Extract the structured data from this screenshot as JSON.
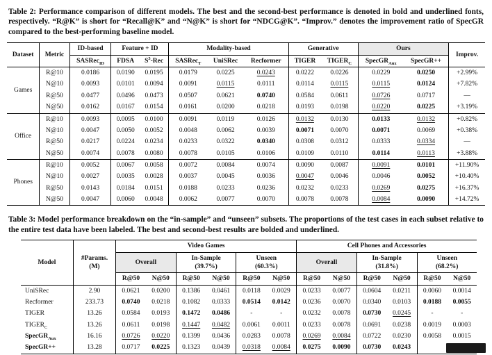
{
  "colors": {
    "highlight": "#e9e9e9",
    "artifact": "#1a1a1a",
    "ink": "#111111",
    "paper_bg": "#ffffff"
  },
  "table2": {
    "caption": "Table 2: Performance comparison of different models. The best and the second-best performance is denoted in bold and underlined fonts, respectively. “R@K” is short for “Recall@K” and “N@K” is short for “NDCG@K”. “Improv.” denotes the improvement ratio of SpecGR compared to the best-performing baseline model.",
    "header": {
      "dataset": "Dataset",
      "metric": "Metric",
      "improv": "Improv.",
      "groups": [
        {
          "label": "ID-based",
          "span": 1,
          "highlight": false
        },
        {
          "label": "Feature + ID",
          "span": 2,
          "highlight": false
        },
        {
          "label": "Modality-based",
          "span": 3,
          "highlight": false
        },
        {
          "label": "Generative",
          "span": 2,
          "highlight": false
        },
        {
          "label": "Ours",
          "span": 2,
          "highlight": true
        }
      ],
      "models": [
        {
          "pre": "SASRec",
          "sub": "ID"
        },
        {
          "pre": "FDSA"
        },
        {
          "pre": "S",
          "sup": "3",
          "mid": "-Rec"
        },
        {
          "pre": "SASRec",
          "sub": "T"
        },
        {
          "pre": "UniSRec"
        },
        {
          "pre": "Recformer"
        },
        {
          "pre": "TIGER"
        },
        {
          "pre": "TIGER",
          "sub": "C"
        },
        {
          "pre": "SpecGR",
          "sub": "Aux"
        },
        {
          "pre": "SpecGR++"
        }
      ]
    },
    "blocks": [
      {
        "dataset": "Games",
        "rows": [
          {
            "metric": "R@10",
            "values": [
              "0.0186",
              "0.0190",
              "0.0195",
              "0.0179",
              "0.0225",
              "u:0.0243",
              "0.0222",
              "0.0226",
              "0.0229",
              "b:0.0250"
            ],
            "improv": "+2.99%"
          },
          {
            "metric": "N@10",
            "values": [
              "0.0093",
              "0.0101",
              "0.0094",
              "0.0091",
              "u:0.0115",
              "0.0111",
              "0.0114",
              "u:0.0115",
              "u:0.0115",
              "b:0.0124"
            ],
            "improv": "+7.82%"
          },
          {
            "metric": "R@50",
            "values": [
              "0.0477",
              "0.0496",
              "0.0473",
              "0.0507",
              "0.0621",
              "b:0.0740",
              "0.0584",
              "0.0611",
              "u:0.0726",
              "0.0717"
            ],
            "improv": "––"
          },
          {
            "metric": "N@50",
            "values": [
              "0.0162",
              "0.0167",
              "0.0154",
              "0.0161",
              "0.0200",
              "0.0218",
              "0.0193",
              "0.0198",
              "u:0.0220",
              "b:0.0225"
            ],
            "improv": "+3.19%"
          }
        ]
      },
      {
        "dataset": "Office",
        "rows": [
          {
            "metric": "R@10",
            "values": [
              "0.0093",
              "0.0095",
              "0.0100",
              "0.0091",
              "0.0119",
              "0.0126",
              "u:0.0132",
              "0.0130",
              "b:0.0133",
              "u:0.0132"
            ],
            "improv": "+0.82%"
          },
          {
            "metric": "N@10",
            "values": [
              "0.0047",
              "0.0050",
              "0.0052",
              "0.0048",
              "0.0062",
              "0.0039",
              "b:0.0071",
              "0.0070",
              "b:0.0071",
              "0.0069"
            ],
            "improv": "+0.38%"
          },
          {
            "metric": "R@50",
            "values": [
              "0.0217",
              "0.0224",
              "0.0234",
              "0.0233",
              "0.0322",
              "b:0.0340",
              "0.0308",
              "0.0312",
              "0.0333",
              "u:0.0334"
            ],
            "improv": "––"
          },
          {
            "metric": "N@50",
            "values": [
              "0.0074",
              "0.0078",
              "0.0080",
              "0.0078",
              "0.0105",
              "0.0106",
              "0.0109",
              "0.0110",
              "b:0.0114",
              "u:0.0113"
            ],
            "improv": "+3.88%"
          }
        ]
      },
      {
        "dataset": "Phones",
        "rows": [
          {
            "metric": "R@10",
            "values": [
              "0.0052",
              "0.0067",
              "0.0058",
              "0.0072",
              "0.0084",
              "0.0074",
              "0.0090",
              "0.0087",
              "u:0.0091",
              "b:0.0101"
            ],
            "improv": "+11.90%"
          },
          {
            "metric": "N@10",
            "values": [
              "0.0027",
              "0.0035",
              "0.0028",
              "0.0037",
              "0.0045",
              "0.0036",
              "u:0.0047",
              "0.0046",
              "0.0046",
              "b:0.0052"
            ],
            "improv": "+10.40%"
          },
          {
            "metric": "R@50",
            "values": [
              "0.0143",
              "0.0184",
              "0.0151",
              "0.0188",
              "0.0233",
              "0.0236",
              "0.0232",
              "0.0233",
              "u:0.0269",
              "b:0.0275"
            ],
            "improv": "+16.37%"
          },
          {
            "metric": "N@50",
            "values": [
              "0.0047",
              "0.0060",
              "0.0048",
              "0.0062",
              "0.0077",
              "0.0070",
              "0.0078",
              "0.0078",
              "u:0.0084",
              "b:0.0090"
            ],
            "improv": "+14.72%"
          }
        ]
      }
    ]
  },
  "table3": {
    "caption": "Table 3: Model performance breakdown on the “in-sample” and “unseen” subsets. The proportions of the test cases in each subset relative to the entire test data have been labeled. The best and second-best results are bolded and underlined.",
    "header": {
      "model": "Model",
      "params_line1": "#Params.",
      "params_line2": "(M)",
      "datasets": [
        {
          "label": "Video Games"
        },
        {
          "label": "Cell Phones and Accessories"
        }
      ],
      "subsets": [
        {
          "label": "Overall",
          "pct": "",
          "highlight": true
        },
        {
          "label": "In-Sample",
          "pct": "(39.7%)",
          "highlight": false
        },
        {
          "label": "Unseen",
          "pct": "(60.3%)",
          "highlight": false
        },
        {
          "label": "Overall",
          "pct": "",
          "highlight": true
        },
        {
          "label": "In-Sample",
          "pct": "(31.8%)",
          "highlight": false
        },
        {
          "label": "Unseen",
          "pct": "(68.2%)",
          "highlight": false
        }
      ],
      "metrics": [
        "R@50",
        "N@50",
        "R@50",
        "N@50",
        "R@50",
        "N@50",
        "R@50",
        "N@50",
        "R@50",
        "N@50",
        "R@50",
        "N@50"
      ]
    },
    "rows": [
      {
        "model": {
          "pre": "UniSRec"
        },
        "params": "2.90",
        "values": [
          "0.0621",
          "0.0200",
          "0.1386",
          "0.0461",
          "0.0118",
          "0.0029",
          "0.0233",
          "0.0077",
          "0.0604",
          "0.0211",
          "0.0060",
          "0.0014"
        ]
      },
      {
        "model": {
          "pre": "Recformer"
        },
        "params": "233.73",
        "values": [
          "b:0.0740",
          "0.0218",
          "0.1082",
          "0.0333",
          "b:0.0514",
          "b:0.0142",
          "0.0236",
          "0.0070",
          "0.0340",
          "0.0103",
          "b:0.0188",
          "b:0.0055"
        ]
      },
      {
        "model": {
          "pre": "TIGER"
        },
        "params": "13.26",
        "values": [
          "0.0584",
          "0.0193",
          "b:0.1472",
          "b:0.0486",
          "-",
          "-",
          "0.0232",
          "0.0078",
          "b:0.0730",
          "u:0.0245",
          "-",
          "-"
        ]
      },
      {
        "model": {
          "pre": "TIGER",
          "sub": "C"
        },
        "params": "13.26",
        "values": [
          "0.0611",
          "0.0198",
          "u:0.1447",
          "u:0.0482",
          "0.0061",
          "0.0011",
          "0.0233",
          "0.0078",
          "0.0691",
          "0.0238",
          "0.0019",
          "0.0003"
        ]
      },
      {
        "model": {
          "pre": "SpecGR",
          "sub": "Aux",
          "bold": true
        },
        "params": "16.16",
        "values": [
          "u:0.0726",
          "u:0.0220",
          "0.1399",
          "0.0436",
          "0.0283",
          "0.0078",
          "u:0.0269",
          "u:0.0084",
          "0.0722",
          "0.0230",
          "0.0058",
          "0.0015"
        ]
      },
      {
        "model": {
          "pre": "SpecGR++",
          "bold": true
        },
        "params": "13.28",
        "values": [
          "0.0717",
          "b:0.0225",
          "0.1323",
          "0.0439",
          "u:0.0318",
          "u:0.0084",
          "b:0.0275",
          "b:0.0090",
          "b:0.0730",
          "b:0.0243",
          "",
          ""
        ]
      }
    ]
  }
}
